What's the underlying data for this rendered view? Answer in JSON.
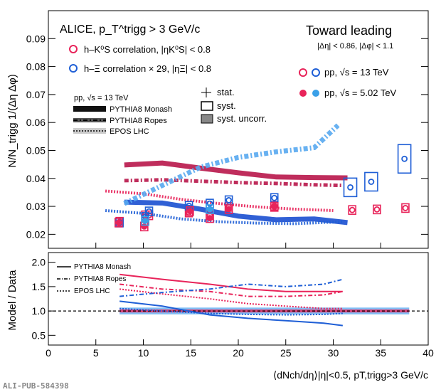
{
  "chart_data": [
    {
      "type": "scatter",
      "panel": "top",
      "ylabel": "N/N_trigg 1/(Δη Δφ)",
      "ylim": [
        0.015,
        0.1
      ],
      "xlim": [
        0,
        40
      ],
      "yticks": [
        0.02,
        0.03,
        0.04,
        0.05,
        0.06,
        0.07,
        0.08,
        0.09
      ],
      "experiment_label": "ALICE, p_T^trigg > 3 GeV/c",
      "region_label": "Toward leading",
      "cuts_label": "|Δη| < 0.86, |Δφ| < 1.1",
      "legend": {
        "kshort": "h–K⁰S correlation, |ηK⁰S| < 0.8",
        "xi": "h–Ξ correlation × 29, |ηΞ| < 0.8",
        "pp13": "pp, √s = 13 TeV",
        "pp502": "pp, √s = 5.02 TeV",
        "model_header": "pp, √s = 13 TeV",
        "monash": "PYTHIA8 Monash",
        "ropes": "PYTHIA8 Ropes",
        "epos": "EPOS LHC",
        "stat": "stat.",
        "syst": "syst.",
        "syst_uncorr": "syst. uncorr."
      },
      "colors": {
        "kshort": "#e8245a",
        "xi": "#1f5fd6",
        "xi_light": "#3aa0e8",
        "kshort_band": "#b8164a",
        "xi_band": "#1a4fd0",
        "xi_fill": "#58a8f0"
      },
      "series": [
        {
          "name": "h–K0S pp 13 TeV",
          "x": [
            7.5,
            10.2,
            10.6,
            14.8,
            17.0,
            19.0,
            23.8,
            32.0,
            34.6,
            37.6
          ],
          "y": [
            0.0245,
            0.0268,
            0.0268,
            0.0278,
            0.0268,
            0.0298,
            0.0302,
            0.0287,
            0.0289,
            0.0294
          ]
        },
        {
          "name": "h–Ξ pp 13 TeV",
          "x": [
            7.5,
            10.2,
            10.6,
            14.8,
            17.0,
            19.0,
            23.8,
            31.8,
            34.0,
            37.5
          ],
          "y": [
            0.0242,
            0.0262,
            0.0282,
            0.0302,
            0.031,
            0.0322,
            0.033,
            0.0368,
            0.0388,
            0.047
          ]
        },
        {
          "name": "h–K0S pp 5.02 TeV",
          "x": [
            7.4,
            10.1,
            14.9,
            17.0,
            19.0,
            23.8
          ],
          "y": [
            0.0242,
            0.0228,
            0.0283,
            0.0258,
            0.029,
            0.0298
          ]
        },
        {
          "name": "h–Ξ pp 5.02 TeV",
          "x": [
            10.2,
            17.0
          ],
          "y": [
            0.0248,
            0.029
          ]
        }
      ],
      "models": [
        {
          "name": "K0S Monash",
          "x": [
            8,
            12,
            16,
            20,
            24,
            28,
            31.5
          ],
          "y": [
            0.0448,
            0.0455,
            0.0437,
            0.042,
            0.0405,
            0.0403,
            0.0402
          ]
        },
        {
          "name": "K0S Ropes",
          "x": [
            8,
            12,
            16,
            20,
            24,
            28,
            31
          ],
          "y": [
            0.0392,
            0.0395,
            0.039,
            0.0385,
            0.0382,
            0.0377,
            0.0375
          ]
        },
        {
          "name": "K0S EPOS",
          "x": [
            6,
            10,
            14,
            18,
            22,
            26,
            30
          ],
          "y": [
            0.0355,
            0.0345,
            0.0325,
            0.031,
            0.0298,
            0.029,
            0.0285
          ]
        },
        {
          "name": "Xi Monash",
          "x": [
            8,
            12,
            16,
            20,
            24,
            28,
            31.5
          ],
          "y": [
            0.0315,
            0.0312,
            0.029,
            0.0265,
            0.0252,
            0.0255,
            0.0242
          ]
        },
        {
          "name": "Xi Ropes",
          "x": [
            8,
            12,
            16,
            20,
            24,
            28,
            30.5
          ],
          "y": [
            0.031,
            0.0375,
            0.044,
            0.0475,
            0.0495,
            0.051,
            0.059
          ]
        },
        {
          "name": "Xi EPOS",
          "x": [
            6,
            10,
            14,
            18,
            22,
            26,
            31
          ],
          "y": [
            0.0285,
            0.0275,
            0.0255,
            0.0245,
            0.024,
            0.0238,
            0.0245
          ]
        }
      ]
    },
    {
      "type": "line",
      "panel": "bottom",
      "ylabel": "Model / Data",
      "xlabel": "⟨dNch/dη⟩|η|<0.5, pT,trigg>3 GeV/c",
      "xlim": [
        0,
        40
      ],
      "ylim": [
        0.3,
        2.2
      ],
      "yticks": [
        0.5,
        1.0,
        1.5,
        2.0
      ],
      "xticks": [
        0,
        5,
        10,
        15,
        20,
        25,
        30,
        35,
        40
      ],
      "legend": {
        "monash": "PYTHIA8 Monash",
        "ropes": "PYTHIA8 Ropes",
        "epos": "EPOS LHC"
      },
      "series": [
        {
          "name": "K0S Monash",
          "x": [
            7.5,
            12,
            17,
            21,
            25,
            29,
            31
          ],
          "y": [
            1.75,
            1.65,
            1.55,
            1.45,
            1.4,
            1.4,
            1.4
          ]
        },
        {
          "name": "K0S Ropes",
          "x": [
            7.5,
            12,
            17,
            21,
            25,
            29,
            31
          ],
          "y": [
            1.55,
            1.45,
            1.4,
            1.3,
            1.3,
            1.33,
            1.4
          ]
        },
        {
          "name": "K0S EPOS",
          "x": [
            7.5,
            12,
            17,
            21,
            25,
            29,
            31
          ],
          "y": [
            1.45,
            1.35,
            1.25,
            1.15,
            1.1,
            1.05,
            1.05
          ]
        },
        {
          "name": "Xi Monash",
          "x": [
            7.5,
            12,
            17,
            21,
            25,
            29,
            31
          ],
          "y": [
            1.2,
            1.1,
            0.92,
            0.85,
            0.8,
            0.75,
            0.7
          ]
        },
        {
          "name": "Xi Ropes",
          "x": [
            7.5,
            12,
            17,
            21,
            25,
            29,
            31
          ],
          "y": [
            1.3,
            1.38,
            1.45,
            1.55,
            1.5,
            1.55,
            1.65
          ]
        },
        {
          "name": "Xi EPOS",
          "x": [
            7.5,
            12,
            17,
            21,
            25,
            29,
            31
          ],
          "y": [
            1.05,
            1.0,
            0.95,
            0.93,
            0.92,
            0.93,
            0.95
          ]
        }
      ],
      "reference_line": 1.0
    }
  ],
  "footer_tag": "ALI-PUB-584398"
}
